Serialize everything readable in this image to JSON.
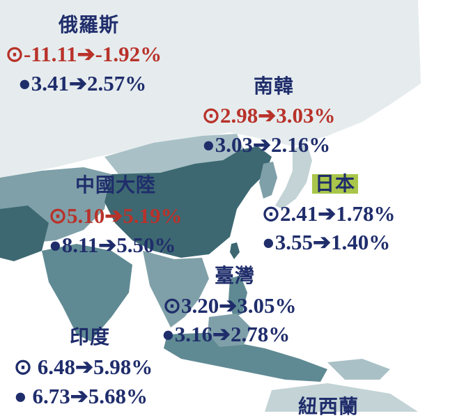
{
  "colors": {
    "navy": "#1f2d6b",
    "red": "#b8322a",
    "highlight": "#a9c64a",
    "land_dark": "#3d6872",
    "land_mid": "#5f8a93",
    "land_light": "#a9c1c6",
    "land_pale": "#e6ecee"
  },
  "regions": [
    {
      "name": "俄羅斯",
      "line1": "⊙-11.11➔-1.92%",
      "line2": "●3.41➔2.57%",
      "line1_color": "red"
    },
    {
      "name": "南韓",
      "line1": "⊙2.98➔3.03%",
      "line2": "●3.03➔2.16%",
      "line1_color": "red"
    },
    {
      "name": "日本",
      "line1": "⊙2.41➔1.78%",
      "line2": "●3.55➔1.40%",
      "line1_color": "navy",
      "highlight": true
    },
    {
      "name": "中國大陸",
      "line1": "⊙5.10➔5.19%",
      "line2": "●8.11➔5.50%",
      "line1_color": "red"
    },
    {
      "name": "臺灣",
      "line1": "⊙3.20➔3.05%",
      "line2": "●3.16➔2.78%",
      "line1_color": "navy"
    },
    {
      "name": "印度",
      "line1": "⊙ 6.48➔5.98%",
      "line2": "● 6.73➔5.68%",
      "line1_color": "navy"
    },
    {
      "name": "紐西蘭"
    }
  ]
}
